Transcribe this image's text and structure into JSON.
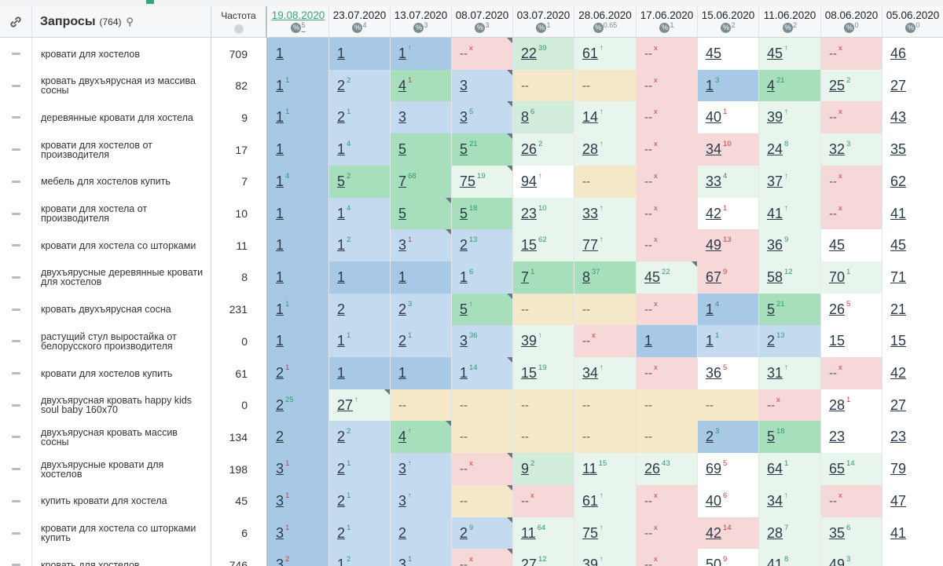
{
  "header": {
    "query_title": "Запросы",
    "query_count": "(764)",
    "freq_label": "Частота",
    "dates": [
      {
        "date": "19.08.2020",
        "sub": "5"
      },
      {
        "date": "23.07.2020",
        "sub": "4"
      },
      {
        "date": "13.07.2020",
        "sub": "3"
      },
      {
        "date": "08.07.2020",
        "sub": "3"
      },
      {
        "date": "03.07.2020",
        "sub": "1"
      },
      {
        "date": "28.06.2020",
        "sub": "0.65"
      },
      {
        "date": "17.06.2020",
        "sub": "1"
      },
      {
        "date": "15.06.2020",
        "sub": "2"
      },
      {
        "date": "11.06.2020",
        "sub": "2"
      },
      {
        "date": "08.06.2020",
        "sub": "0"
      },
      {
        "date": "05.06.2020",
        "sub": "0"
      }
    ]
  },
  "rows": [
    {
      "q": "кровати для хостелов",
      "f": "709",
      "c": [
        [
          "1",
          "",
          "",
          "b1"
        ],
        [
          "1",
          "",
          "",
          "b1"
        ],
        [
          "1",
          "↑",
          "up",
          "b1"
        ],
        [
          "--",
          "x",
          "x",
          "r1"
        ],
        [
          "22",
          "39",
          "up",
          "g2"
        ],
        [
          "61",
          "↑",
          "up",
          "g3"
        ],
        [
          "--",
          "x",
          "x",
          "r1"
        ],
        [
          "45",
          "",
          "",
          "w1"
        ],
        [
          "45",
          "↑",
          "up",
          "g3"
        ],
        [
          "--",
          "x",
          "x",
          "r1"
        ],
        [
          "46",
          "",
          "",
          "w1"
        ]
      ]
    },
    {
      "q": "кровать двухъярусная из массива сосны",
      "f": "82",
      "c": [
        [
          "1",
          "1",
          "up",
          "b1"
        ],
        [
          "2",
          "2",
          "up",
          "b2"
        ],
        [
          "4",
          "1",
          "dn",
          "g1"
        ],
        [
          "3",
          "",
          "",
          "b2"
        ],
        [
          "--",
          "",
          "",
          "y1"
        ],
        [
          "--",
          "",
          "",
          "y1"
        ],
        [
          "--",
          "x",
          "x",
          "r1"
        ],
        [
          "1",
          "3",
          "up",
          "b1"
        ],
        [
          "4",
          "21",
          "up",
          "g1"
        ],
        [
          "25",
          "2",
          "up",
          "g3"
        ],
        [
          "27",
          "",
          "",
          "w1"
        ]
      ]
    },
    {
      "q": "деревянные кровати для хостела",
      "f": "9",
      "c": [
        [
          "1",
          "1",
          "up",
          "b1"
        ],
        [
          "2",
          "1",
          "up",
          "b2"
        ],
        [
          "3",
          "",
          "",
          "b2"
        ],
        [
          "3",
          "5",
          "up",
          "b2"
        ],
        [
          "8",
          "6",
          "up",
          "g2"
        ],
        [
          "14",
          "↑",
          "up",
          "g3"
        ],
        [
          "--",
          "x",
          "x",
          "r1"
        ],
        [
          "40",
          "1",
          "dn",
          "w1"
        ],
        [
          "39",
          "↑",
          "up",
          "g3"
        ],
        [
          "--",
          "x",
          "x",
          "r1"
        ],
        [
          "43",
          "",
          "",
          "w1"
        ]
      ]
    },
    {
      "q": "кровати для хостелов от производителя",
      "f": "17",
      "c": [
        [
          "1",
          "",
          "",
          "b1"
        ],
        [
          "1",
          "4",
          "up",
          "b2"
        ],
        [
          "5",
          "",
          "",
          "g1"
        ],
        [
          "5",
          "21",
          "up",
          "g1"
        ],
        [
          "26",
          "2",
          "up",
          "g3"
        ],
        [
          "28",
          "↑",
          "up",
          "g3"
        ],
        [
          "--",
          "x",
          "x",
          "r1"
        ],
        [
          "34",
          "10",
          "dn",
          "r1"
        ],
        [
          "24",
          "8",
          "up",
          "g3"
        ],
        [
          "32",
          "3",
          "up",
          "g3"
        ],
        [
          "35",
          "",
          "",
          "w1"
        ]
      ]
    },
    {
      "q": "мебель для хостелов купить",
      "f": "7",
      "c": [
        [
          "1",
          "4",
          "up",
          "b1"
        ],
        [
          "5",
          "2",
          "up",
          "g1"
        ],
        [
          "7",
          "68",
          "up",
          "g1"
        ],
        [
          "75",
          "19",
          "up",
          "g3"
        ],
        [
          "94",
          "↑",
          "up",
          "w1"
        ],
        [
          "--",
          "",
          "",
          "y1"
        ],
        [
          "--",
          "x",
          "x",
          "r1"
        ],
        [
          "33",
          "4",
          "up",
          "g3"
        ],
        [
          "37",
          "↑",
          "up",
          "g3"
        ],
        [
          "--",
          "x",
          "x",
          "r1"
        ],
        [
          "62",
          "",
          "",
          "w1"
        ]
      ]
    },
    {
      "q": "кровати для хостела от производителя",
      "f": "10",
      "c": [
        [
          "1",
          "",
          "",
          "b1"
        ],
        [
          "1",
          "4",
          "up",
          "b2"
        ],
        [
          "5",
          "",
          "",
          "g1"
        ],
        [
          "5",
          "18",
          "up",
          "g1"
        ],
        [
          "23",
          "10",
          "up",
          "g3"
        ],
        [
          "33",
          "↑",
          "up",
          "g3"
        ],
        [
          "--",
          "x",
          "x",
          "r1"
        ],
        [
          "42",
          "1",
          "dn",
          "w1"
        ],
        [
          "41",
          "↑",
          "up",
          "g3"
        ],
        [
          "--",
          "x",
          "x",
          "r1"
        ],
        [
          "41",
          "",
          "",
          "w1"
        ]
      ]
    },
    {
      "q": "кровати для хостела со шторками",
      "f": "11",
      "c": [
        [
          "1",
          "",
          "",
          "b1"
        ],
        [
          "1",
          "2",
          "up",
          "b2"
        ],
        [
          "3",
          "1",
          "dn",
          "b2"
        ],
        [
          "2",
          "13",
          "up",
          "b2"
        ],
        [
          "15",
          "62",
          "up",
          "g3"
        ],
        [
          "77",
          "↑",
          "up",
          "g3"
        ],
        [
          "--",
          "x",
          "x",
          "r1"
        ],
        [
          "49",
          "13",
          "dn",
          "r1"
        ],
        [
          "36",
          "9",
          "up",
          "g3"
        ],
        [
          "45",
          "",
          "",
          "w1"
        ],
        [
          "45",
          "",
          "",
          "w1"
        ]
      ]
    },
    {
      "q": "двухъярусные деревянные кровати для хостелов",
      "f": "8",
      "c": [
        [
          "1",
          "",
          "",
          "b1"
        ],
        [
          "1",
          "",
          "",
          "b1"
        ],
        [
          "1",
          "",
          "",
          "b1"
        ],
        [
          "1",
          "6",
          "up",
          "b2"
        ],
        [
          "7",
          "1",
          "up",
          "g1"
        ],
        [
          "8",
          "37",
          "up",
          "g1"
        ],
        [
          "45",
          "22",
          "up",
          "g3"
        ],
        [
          "67",
          "9",
          "dn",
          "r1"
        ],
        [
          "58",
          "12",
          "up",
          "g3"
        ],
        [
          "70",
          "1",
          "up",
          "g3"
        ],
        [
          "71",
          "",
          "",
          "w1"
        ]
      ]
    },
    {
      "q": "кровать двухъярусная сосна",
      "f": "231",
      "c": [
        [
          "1",
          "1",
          "up",
          "b1"
        ],
        [
          "2",
          "",
          "",
          "b2"
        ],
        [
          "2",
          "3",
          "up",
          "b2"
        ],
        [
          "5",
          "↑",
          "up",
          "g1"
        ],
        [
          "--",
          "",
          "",
          "y1"
        ],
        [
          "--",
          "",
          "",
          "y1"
        ],
        [
          "--",
          "x",
          "x",
          "r1"
        ],
        [
          "1",
          "4",
          "up",
          "b1"
        ],
        [
          "5",
          "21",
          "up",
          "g1"
        ],
        [
          "26",
          "5",
          "dn",
          "w1"
        ],
        [
          "21",
          "",
          "",
          "w1"
        ]
      ]
    },
    {
      "q": "растущий стул выростайка от белорусского производителя",
      "f": "0",
      "c": [
        [
          "1",
          "",
          "",
          "b1"
        ],
        [
          "1",
          "1",
          "up",
          "b2"
        ],
        [
          "2",
          "1",
          "up",
          "b2"
        ],
        [
          "3",
          "36",
          "up",
          "b2"
        ],
        [
          "39",
          "↑",
          "up",
          "g3"
        ],
        [
          "--",
          "x",
          "x",
          "r1"
        ],
        [
          "1",
          "",
          "",
          "b1"
        ],
        [
          "1",
          "1",
          "up",
          "b2"
        ],
        [
          "2",
          "13",
          "up",
          "b2"
        ],
        [
          "15",
          "",
          "",
          "w1"
        ],
        [
          "15",
          "",
          "",
          "w1"
        ]
      ]
    },
    {
      "q": "кровати для хостелов купить",
      "f": "61",
      "c": [
        [
          "2",
          "1",
          "dn",
          "b1"
        ],
        [
          "1",
          "",
          "",
          "b1"
        ],
        [
          "1",
          "",
          "",
          "b1"
        ],
        [
          "1",
          "14",
          "up",
          "b2"
        ],
        [
          "15",
          "19",
          "up",
          "g3"
        ],
        [
          "34",
          "↑",
          "up",
          "g3"
        ],
        [
          "--",
          "x",
          "x",
          "r1"
        ],
        [
          "36",
          "5",
          "dn",
          "w1"
        ],
        [
          "31",
          "↑",
          "up",
          "g3"
        ],
        [
          "--",
          "x",
          "x",
          "r1"
        ],
        [
          "42",
          "",
          "",
          "w1"
        ]
      ]
    },
    {
      "q": "двухъярусная кровать happy kids soul baby 160х70",
      "f": "0",
      "c": [
        [
          "2",
          "25",
          "up",
          "b1"
        ],
        [
          "27",
          "↑",
          "up",
          "g3"
        ],
        [
          "--",
          "",
          "",
          "y1"
        ],
        [
          "--",
          "",
          "",
          "y1"
        ],
        [
          "--",
          "",
          "",
          "y1"
        ],
        [
          "--",
          "",
          "",
          "y1"
        ],
        [
          "--",
          "",
          "",
          "y1"
        ],
        [
          "--",
          "",
          "",
          "y1"
        ],
        [
          "--",
          "x",
          "x",
          "r1"
        ],
        [
          "28",
          "1",
          "dn",
          "w1"
        ],
        [
          "27",
          "",
          "",
          "w1"
        ]
      ]
    },
    {
      "q": "двухъярусная кровать массив сосны",
      "f": "134",
      "c": [
        [
          "2",
          "",
          "",
          "b1"
        ],
        [
          "2",
          "2",
          "up",
          "b2"
        ],
        [
          "4",
          "↑",
          "up",
          "g1"
        ],
        [
          "--",
          "",
          "",
          "y1"
        ],
        [
          "--",
          "",
          "",
          "y1"
        ],
        [
          "--",
          "",
          "",
          "y1"
        ],
        [
          "--",
          "",
          "",
          "y1"
        ],
        [
          "2",
          "3",
          "up",
          "b1"
        ],
        [
          "5",
          "18",
          "up",
          "g1"
        ],
        [
          "23",
          "",
          "",
          "w1"
        ],
        [
          "23",
          "",
          "",
          "w1"
        ]
      ]
    },
    {
      "q": "двухъярусные кровати для хостелов",
      "f": "198",
      "c": [
        [
          "3",
          "1",
          "dn",
          "b1"
        ],
        [
          "2",
          "1",
          "up",
          "b2"
        ],
        [
          "3",
          "↑",
          "up",
          "b2"
        ],
        [
          "--",
          "x",
          "x",
          "r1"
        ],
        [
          "9",
          "2",
          "up",
          "g2"
        ],
        [
          "11",
          "15",
          "up",
          "g3"
        ],
        [
          "26",
          "43",
          "up",
          "g3"
        ],
        [
          "69",
          "5",
          "dn",
          "w1"
        ],
        [
          "64",
          "1",
          "up",
          "g3"
        ],
        [
          "65",
          "14",
          "up",
          "g3"
        ],
        [
          "79",
          "",
          "",
          "w1"
        ]
      ]
    },
    {
      "q": "купить кровати для хостела",
      "f": "45",
      "c": [
        [
          "3",
          "1",
          "dn",
          "b1"
        ],
        [
          "2",
          "1",
          "up",
          "b2"
        ],
        [
          "3",
          "↑",
          "up",
          "b2"
        ],
        [
          "--",
          "",
          "",
          "y1"
        ],
        [
          "--",
          "x",
          "x",
          "r1"
        ],
        [
          "61",
          "↑",
          "up",
          "g3"
        ],
        [
          "--",
          "x",
          "x",
          "r1"
        ],
        [
          "40",
          "6",
          "dn",
          "w1"
        ],
        [
          "34",
          "↑",
          "up",
          "g3"
        ],
        [
          "--",
          "x",
          "x",
          "r1"
        ],
        [
          "47",
          "",
          "",
          "w1"
        ]
      ]
    },
    {
      "q": "кровати для хостела со шторками купить",
      "f": "6",
      "c": [
        [
          "3",
          "1",
          "dn",
          "b1"
        ],
        [
          "2",
          "1",
          "up",
          "b2"
        ],
        [
          "2",
          "",
          "",
          "b2"
        ],
        [
          "2",
          "9",
          "up",
          "b2"
        ],
        [
          "11",
          "64",
          "up",
          "g3"
        ],
        [
          "75",
          "↑",
          "up",
          "g3"
        ],
        [
          "--",
          "x",
          "x",
          "r1"
        ],
        [
          "42",
          "14",
          "dn",
          "r1"
        ],
        [
          "28",
          "7",
          "up",
          "g3"
        ],
        [
          "35",
          "6",
          "up",
          "g3"
        ],
        [
          "41",
          "",
          "",
          "w1"
        ]
      ]
    },
    {
      "q": "кровать для хостелов",
      "f": "746",
      "c": [
        [
          "3",
          "2",
          "dn",
          "b1"
        ],
        [
          "1",
          "2",
          "up",
          "b2"
        ],
        [
          "3",
          "1",
          "up",
          "b2"
        ],
        [
          "--",
          "x",
          "x",
          "r1"
        ],
        [
          "27",
          "12",
          "up",
          "g3"
        ],
        [
          "39",
          "↑",
          "up",
          "g3"
        ],
        [
          "--",
          "x",
          "x",
          "r1"
        ],
        [
          "50",
          "9",
          "dn",
          "w1"
        ],
        [
          "41",
          "8",
          "up",
          "g3"
        ],
        [
          "49",
          "3",
          "up",
          "g3"
        ],
        [
          "",
          "",
          "",
          "w1"
        ]
      ]
    }
  ],
  "cornered": [
    [
      0,
      3
    ],
    [
      1,
      3
    ],
    [
      2,
      3
    ],
    [
      3,
      3
    ],
    [
      4,
      3
    ],
    [
      5,
      2
    ],
    [
      6,
      2
    ],
    [
      7,
      6
    ],
    [
      8,
      3
    ],
    [
      10,
      3
    ],
    [
      11,
      1
    ],
    [
      12,
      2
    ],
    [
      13,
      3
    ],
    [
      14,
      3
    ],
    [
      15,
      3
    ],
    [
      16,
      3
    ]
  ]
}
